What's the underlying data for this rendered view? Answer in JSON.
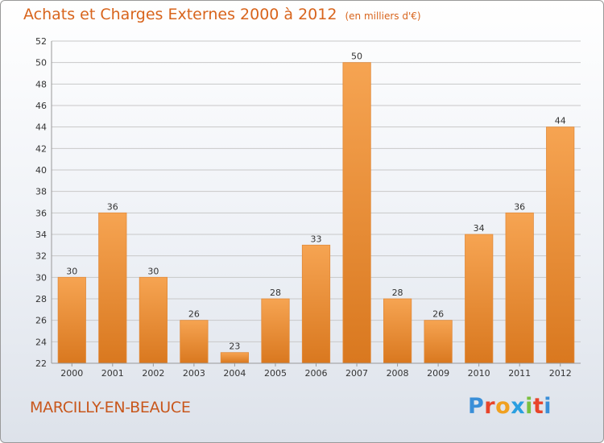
{
  "header": {
    "title": "Achats et Charges Externes 2000 à 2012",
    "unit": "(en milliers d'€)"
  },
  "footer": {
    "town": "MARCILLY-EN-BEAUCE",
    "logo_letters": [
      "P",
      "r",
      "o",
      "x",
      "i",
      "t",
      "i"
    ],
    "logo_colors": [
      "#3a8fd8",
      "#e8442a",
      "#f0a020",
      "#2a9fe0",
      "#7ac040",
      "#e8442a",
      "#3a8fd8"
    ]
  },
  "colors": {
    "bar_light": "#f6a452",
    "bar_dark": "#d9781f",
    "axis_text": "#333333",
    "grid": "#c8c8c8"
  },
  "chart_data": {
    "type": "bar",
    "title": "Achats et Charges Externes 2000 à 2012",
    "subtitle": "(en milliers d'€)",
    "categories": [
      "2000",
      "2001",
      "2002",
      "2003",
      "2004",
      "2005",
      "2006",
      "2007",
      "2008",
      "2009",
      "2010",
      "2011",
      "2012"
    ],
    "values": [
      30,
      36,
      30,
      26,
      23,
      28,
      33,
      50,
      28,
      26,
      34,
      36,
      44
    ],
    "ylim": [
      22,
      52
    ],
    "yticks": [
      22,
      24,
      26,
      28,
      30,
      32,
      34,
      36,
      38,
      40,
      42,
      44,
      46,
      48,
      50,
      52
    ],
    "grid": true,
    "xlabel": "",
    "ylabel": ""
  }
}
